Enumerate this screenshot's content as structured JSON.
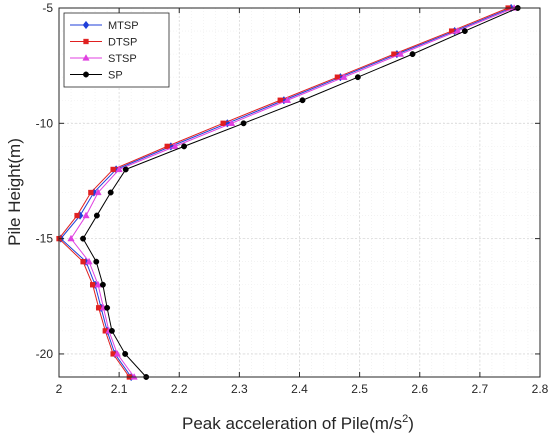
{
  "chart_data": {
    "type": "line",
    "xlabel": "Peak acceleration of Pile(m/s",
    "xlabel_sup": "2",
    "xlabel_end": ")",
    "ylabel": "Pile Height(m)",
    "xlim": [
      2.0,
      2.8
    ],
    "ylim": [
      -21,
      -5
    ],
    "xticks": [
      2,
      2.1,
      2.2,
      2.3,
      2.4,
      2.5,
      2.6,
      2.7,
      2.8
    ],
    "xtick_labels": [
      "2",
      "2.1",
      "2.2",
      "2.3",
      "2.4",
      "2.5",
      "2.6",
      "2.7",
      "2.8"
    ],
    "yticks": [
      -5,
      -10,
      -15,
      -20
    ],
    "ytick_labels": [
      "-5",
      "-10",
      "-15",
      "-20"
    ],
    "grid": true,
    "legend_position": "top-left",
    "y": [
      -5,
      -6,
      -7,
      -8,
      -9,
      -10,
      -11,
      -12,
      -13,
      -14,
      -15,
      -16,
      -17,
      -18,
      -19,
      -20,
      -21
    ],
    "series": [
      {
        "name": "MTSP",
        "color": "#1f3fd9",
        "marker": "diamond",
        "x": [
          2.752,
          2.658,
          2.562,
          2.468,
          2.374,
          2.28,
          2.186,
          2.095,
          2.058,
          2.035,
          2.003,
          2.045,
          2.06,
          2.07,
          2.08,
          2.093,
          2.12
        ]
      },
      {
        "name": "DTSP",
        "color": "#e02020",
        "marker": "square",
        "x": [
          2.747,
          2.653,
          2.557,
          2.463,
          2.368,
          2.273,
          2.18,
          2.09,
          2.053,
          2.03,
          2.0,
          2.04,
          2.056,
          2.066,
          2.077,
          2.09,
          2.117
        ]
      },
      {
        "name": "STSP",
        "color": "#e040e0",
        "marker": "triangle",
        "x": [
          2.757,
          2.663,
          2.568,
          2.474,
          2.38,
          2.287,
          2.193,
          2.1,
          2.065,
          2.045,
          2.02,
          2.05,
          2.065,
          2.074,
          2.083,
          2.097,
          2.125
        ]
      },
      {
        "name": "SP",
        "color": "#000000",
        "marker": "circle",
        "x": [
          2.763,
          2.675,
          2.588,
          2.497,
          2.405,
          2.307,
          2.208,
          2.111,
          2.086,
          2.063,
          2.04,
          2.062,
          2.073,
          2.08,
          2.088,
          2.11,
          2.145
        ]
      }
    ]
  }
}
